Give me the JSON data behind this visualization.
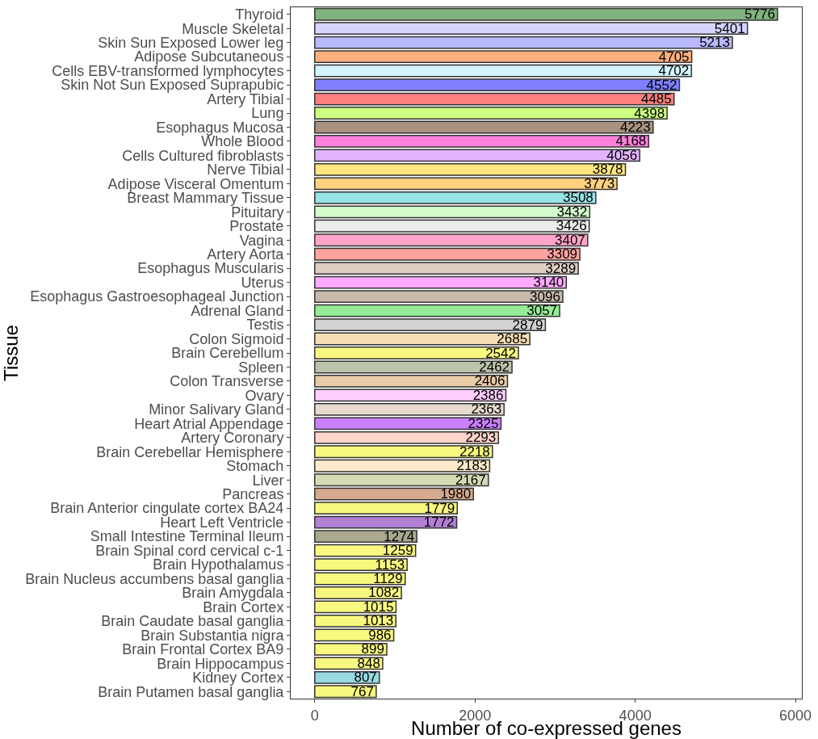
{
  "chart_data": {
    "type": "bar",
    "orientation": "horizontal",
    "xlabel": "Number of co-expressed genes",
    "ylabel": "Tissue",
    "categories": [
      "Thyroid",
      "Muscle Skeletal",
      "Skin Sun Exposed Lower leg",
      "Adipose Subcutaneous",
      "Cells EBV-transformed lymphocytes",
      "Skin Not Sun Exposed Suprapubic",
      "Artery Tibial",
      "Lung",
      "Esophagus Mucosa",
      "Whole Blood",
      "Cells Cultured fibroblasts",
      "Nerve Tibial",
      "Adipose Visceral Omentum",
      "Breast Mammary Tissue",
      "Pituitary",
      "Prostate",
      "Vagina",
      "Artery Aorta",
      "Esophagus Muscularis",
      "Uterus",
      "Esophagus Gastroesophageal Junction",
      "Adrenal Gland",
      "Testis",
      "Colon Sigmoid",
      "Brain Cerebellum",
      "Spleen",
      "Colon Transverse",
      "Ovary",
      "Minor Salivary Gland",
      "Heart Atrial Appendage",
      "Artery Coronary",
      "Brain Cerebellar Hemisphere",
      "Stomach",
      "Liver",
      "Pancreas",
      "Brain Anterior cingulate cortex BA24",
      "Heart Left Ventricle",
      "Small Intestine Terminal Ileum",
      "Brain Spinal cord cervical c-1",
      "Brain Hypothalamus",
      "Brain Nucleus accumbens basal ganglia",
      "Brain Amygdala",
      "Brain Cortex",
      "Brain Caudate basal ganglia",
      "Brain Substantia nigra",
      "Brain Frontal Cortex BA9",
      "Brain Hippocampus",
      "Kidney Cortex",
      "Brain Putamen basal ganglia"
    ],
    "values": [
      5776,
      5401,
      5213,
      4705,
      4702,
      4552,
      4485,
      4398,
      4223,
      4168,
      4056,
      3878,
      3773,
      3508,
      3432,
      3426,
      3407,
      3309,
      3289,
      3140,
      3096,
      3057,
      2879,
      2685,
      2542,
      2462,
      2406,
      2386,
      2363,
      2325,
      2293,
      2218,
      2183,
      2167,
      1980,
      1779,
      1772,
      1274,
      1259,
      1153,
      1129,
      1082,
      1015,
      1013,
      986,
      899,
      848,
      807,
      767
    ],
    "colors": [
      "#7fb27f",
      "#d6d4ff",
      "#b9b9ff",
      "#ffb07f",
      "#d3f6ff",
      "#7f7fff",
      "#ff7f7f",
      "#ccff7f",
      "#a99280",
      "#ff7fdd",
      "#e2b4ff",
      "#ffe67f",
      "#ffd07f",
      "#97e3e6",
      "#d4fccc",
      "#ececec",
      "#ffa5c9",
      "#ffa3a0",
      "#ddcdc3",
      "#ffaaff",
      "#c8b9aa",
      "#96eb96",
      "#d2d2d2",
      "#f5deb5",
      "#f8f77f",
      "#bbc3aa",
      "#e9cba6",
      "#ffcdff",
      "#e6dbce",
      "#cd7fff",
      "#ffd4cb",
      "#f8f77f",
      "#ffebcc",
      "#d3dcb3",
      "#d6aa8e",
      "#f8f77f",
      "#b27fd6",
      "#aaa990",
      "#f8f77f",
      "#f8f77f",
      "#f8f77f",
      "#f8f77f",
      "#f8f77f",
      "#f8f77f",
      "#f8f77f",
      "#f8f77f",
      "#f8f77f",
      "#99d9e1",
      "#f8f77f"
    ],
    "xlim": [
      -300,
      6080
    ],
    "xticks": [
      0,
      2000,
      4000,
      6000
    ],
    "grid": false,
    "data_labels": true
  }
}
